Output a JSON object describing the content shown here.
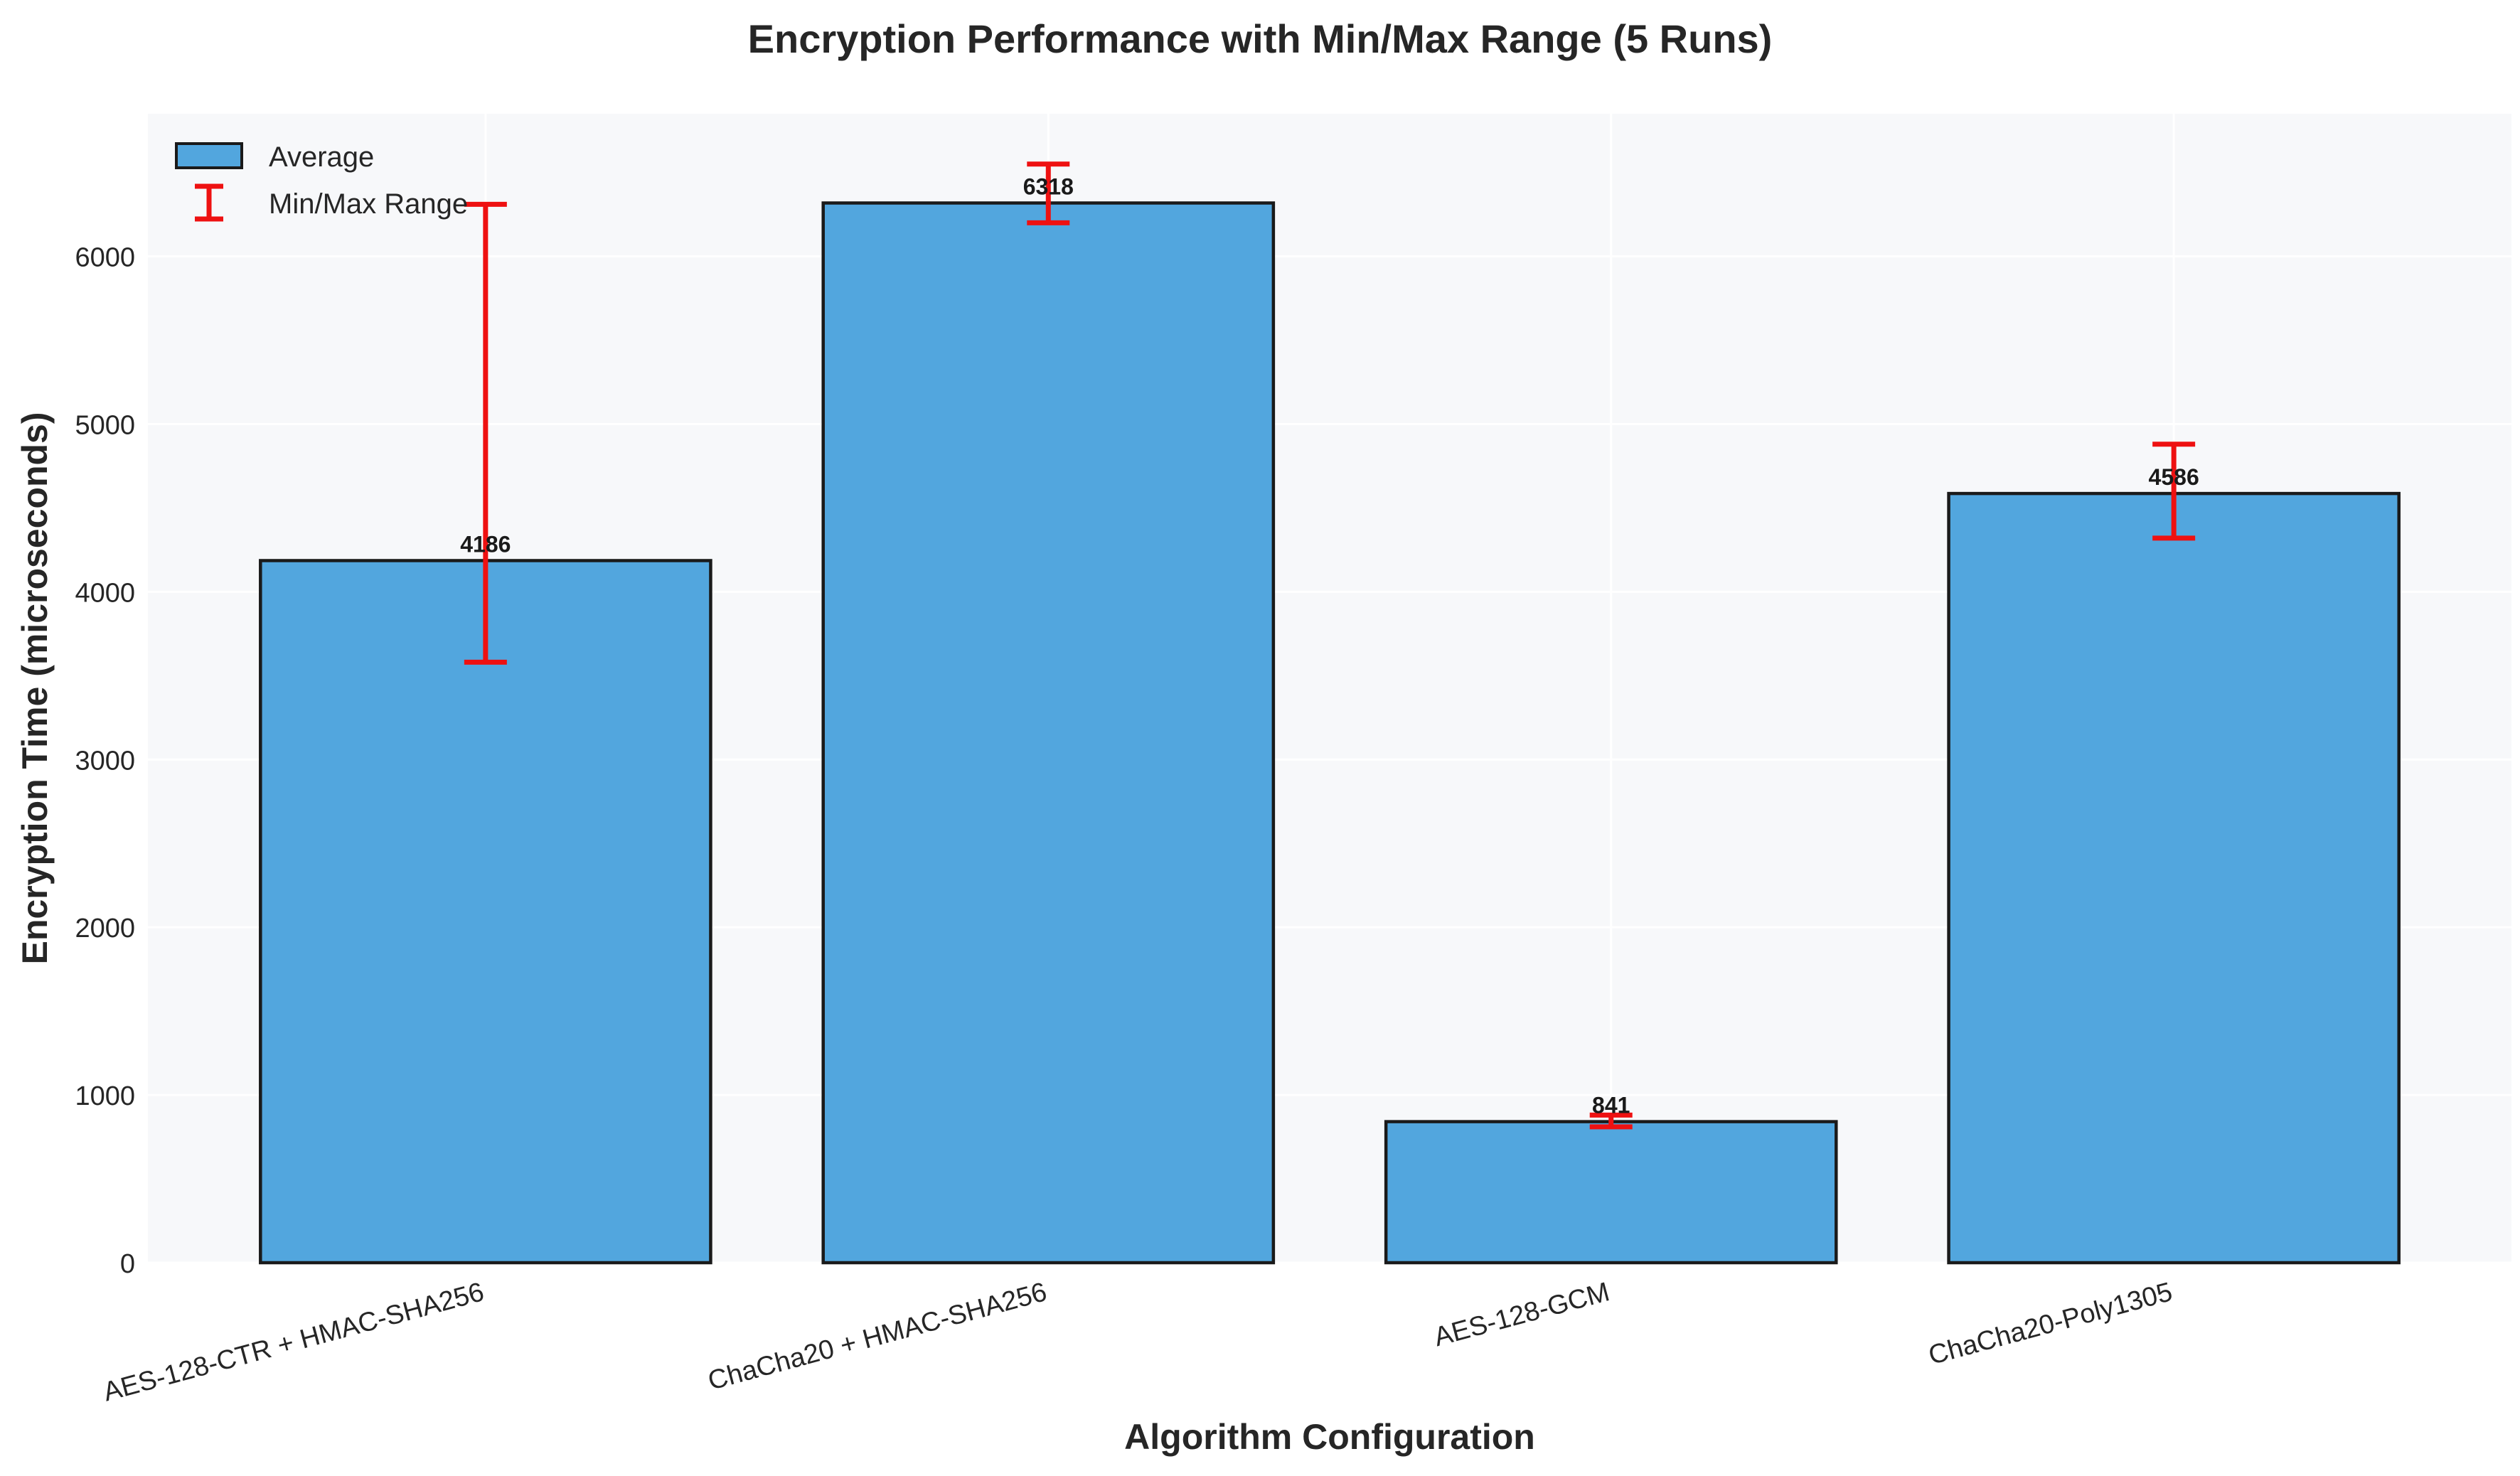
{
  "chart_data": {
    "type": "bar",
    "title": "Encryption Performance with Min/Max Range (5 Runs)",
    "xlabel": "Algorithm Configuration",
    "ylabel": "Encryption Time (microseconds)",
    "categories": [
      "AES-128-CTR + HMAC-SHA256",
      "ChaCha20 + HMAC-SHA256",
      "AES-128-GCM",
      "ChaCha20-Poly1305"
    ],
    "values": [
      4186,
      6318,
      841,
      4586
    ],
    "value_labels": [
      "4186",
      "6318",
      "841",
      "4586"
    ],
    "min": [
      3580,
      6200,
      810,
      4320
    ],
    "max": [
      6310,
      6550,
      880,
      4880
    ],
    "ylim": [
      0,
      6850
    ],
    "yticks": [
      0,
      1000,
      2000,
      3000,
      4000,
      5000,
      6000
    ],
    "ytick_labels": [
      "0",
      "1000",
      "2000",
      "3000",
      "4000",
      "5000",
      "6000"
    ],
    "grid": true,
    "legend": {
      "position": "top-left",
      "entries": [
        {
          "label": "Average",
          "kind": "bar"
        },
        {
          "label": "Min/Max Range",
          "kind": "errorbar"
        }
      ]
    },
    "colors": {
      "bar": "#52a6de",
      "bar_edge": "#1a1a1a",
      "errorbar": "#ee1111",
      "plot_bg": "#f7f8fa",
      "grid": "#ffffff",
      "text": "#262626"
    }
  }
}
